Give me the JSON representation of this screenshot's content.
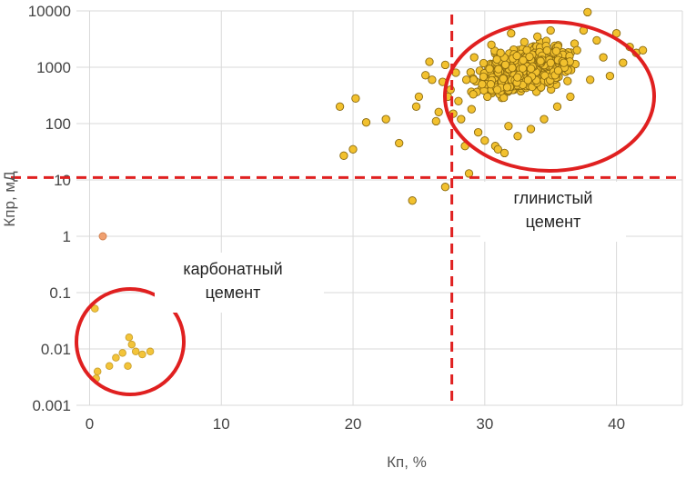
{
  "chart_data": {
    "type": "scatter",
    "title": "",
    "xlabel": "Кп, %",
    "ylabel": "Кпр, мД",
    "xlim": [
      -1,
      45
    ],
    "ylim": [
      0.001,
      10000
    ],
    "yscale": "log",
    "grid": true,
    "x_ticks": [
      "0",
      "10",
      "20",
      "30",
      "40"
    ],
    "y_ticks": [
      "0.001",
      "0.01",
      "0.1",
      "1",
      "10",
      "100",
      "1000",
      "10000"
    ],
    "marker_color": "#f2c12e",
    "marker_edge_color": "#8a6a10",
    "outlier_color": "#f0a070",
    "highlight_color": "#e02020",
    "threshold_lines": {
      "x": 27.5,
      "y": 11
    },
    "annotations": [
      {
        "lines": [
          "глинистый",
          "цемент"
        ]
      },
      {
        "lines": [
          "карбонатный",
          "цемент"
        ]
      }
    ],
    "highlight_ellipses": [
      {
        "cx": 34.5,
        "cy": 500,
        "note": "clay cement cluster"
      },
      {
        "cx": 2.8,
        "cy": 0.01,
        "note": "carbonate cement cluster"
      }
    ],
    "points_main": [
      [
        19.0,
        200
      ],
      [
        19.3,
        27
      ],
      [
        20.0,
        35
      ],
      [
        20.2,
        280
      ],
      [
        21.0,
        105
      ],
      [
        22.5,
        120
      ],
      [
        23.5,
        45
      ],
      [
        24.5,
        4.3
      ],
      [
        24.8,
        200
      ],
      [
        25.0,
        300
      ],
      [
        25.5,
        720
      ],
      [
        25.8,
        1250
      ],
      [
        26.0,
        600
      ],
      [
        26.3,
        110
      ],
      [
        26.5,
        160
      ],
      [
        26.8,
        550
      ],
      [
        27.0,
        7.5
      ],
      [
        27.0,
        1100
      ],
      [
        27.2,
        300
      ],
      [
        27.4,
        400
      ],
      [
        27.6,
        150
      ],
      [
        27.8,
        800
      ],
      [
        28.0,
        250
      ],
      [
        28.2,
        120
      ],
      [
        28.5,
        40
      ],
      [
        28.6,
        600
      ],
      [
        28.8,
        13
      ],
      [
        29.0,
        180
      ],
      [
        29.2,
        1500
      ],
      [
        29.5,
        70
      ],
      [
        29.8,
        500
      ],
      [
        30.0,
        50
      ],
      [
        30.2,
        300
      ],
      [
        30.5,
        2500
      ],
      [
        30.8,
        40
      ],
      [
        31.0,
        35
      ],
      [
        31.2,
        1800
      ],
      [
        31.5,
        30
      ],
      [
        31.8,
        90
      ],
      [
        32.0,
        4000
      ],
      [
        32.5,
        60
      ],
      [
        33.0,
        2800
      ],
      [
        33.5,
        80
      ],
      [
        34.0,
        3500
      ],
      [
        34.5,
        120
      ],
      [
        35.0,
        4500
      ],
      [
        35.5,
        200
      ],
      [
        36.0,
        1200
      ],
      [
        36.5,
        300
      ],
      [
        37.0,
        2000
      ],
      [
        37.5,
        4500
      ],
      [
        37.8,
        9500
      ],
      [
        38.0,
        600
      ],
      [
        38.5,
        3000
      ],
      [
        39.0,
        1500
      ],
      [
        39.5,
        700
      ],
      [
        40.0,
        4000
      ],
      [
        40.5,
        1200
      ],
      [
        41.0,
        2300
      ],
      [
        41.5,
        1800
      ],
      [
        42.0,
        2000
      ]
    ],
    "points_carbonate": [
      [
        0.4,
        0.052
      ],
      [
        0.5,
        0.003
      ],
      [
        0.6,
        0.004
      ],
      [
        1.5,
        0.005
      ],
      [
        2.0,
        0.007
      ],
      [
        2.5,
        0.0085
      ],
      [
        2.9,
        0.005
      ],
      [
        3.0,
        0.016
      ],
      [
        3.2,
        0.012
      ],
      [
        3.5,
        0.009
      ],
      [
        4.0,
        0.008
      ],
      [
        4.6,
        0.009
      ]
    ],
    "points_outlier": [
      [
        1.0,
        1.0
      ]
    ],
    "cluster": {
      "count": 650,
      "x_center": 33.0,
      "x_spread": 2.8,
      "logy_center": 2.95,
      "logy_spread": 0.32,
      "x_min": 27.2,
      "x_max": 41.0,
      "logy_min": 1.3,
      "logy_max": 3.7
    }
  }
}
